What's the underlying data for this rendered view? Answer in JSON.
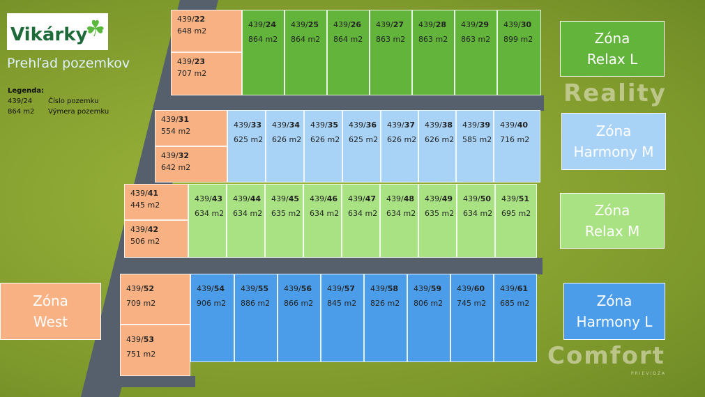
{
  "logo": {
    "text": "Vikárky"
  },
  "title": "Prehľad pozemkov",
  "legend": {
    "heading": "Legenda:",
    "rows": [
      {
        "sample": "439/24",
        "label": "Číslo pozemku"
      },
      {
        "sample": "864 m2",
        "label": "Výmera pozemku"
      }
    ]
  },
  "colors": {
    "orange": "#f8b183",
    "green": "#62b43a",
    "light_blue": "#a8d3f6",
    "light_green": "#a9e282",
    "blue": "#4c9de9",
    "road": "#55606c"
  },
  "zones": [
    {
      "name": "Zóna",
      "sub": "Relax L",
      "color": "#62b43a"
    },
    {
      "name": "Zóna",
      "sub": "Harmony M",
      "color": "#a8d3f6"
    },
    {
      "name": "Zóna",
      "sub": "Relax M",
      "color": "#a9e282"
    },
    {
      "name": "Zóna",
      "sub": "West",
      "color": "#f8b183",
      "text": "#ffffff"
    },
    {
      "name": "Zóna",
      "sub": "Harmony L",
      "color": "#4c9de9"
    }
  ],
  "plots": [
    {
      "prefix": "439/",
      "num": "22",
      "area": "648 m2",
      "zone": "orange"
    },
    {
      "prefix": "439/",
      "num": "23",
      "area": "707 m2",
      "zone": "orange"
    },
    {
      "prefix": "439/",
      "num": "24",
      "area": "864 m2",
      "zone": "green"
    },
    {
      "prefix": "439/",
      "num": "25",
      "area": "864 m2",
      "zone": "green"
    },
    {
      "prefix": "439/",
      "num": "26",
      "area": "864 m2",
      "zone": "green"
    },
    {
      "prefix": "439/",
      "num": "27",
      "area": "863 m2",
      "zone": "green"
    },
    {
      "prefix": "439/",
      "num": "28",
      "area": "863 m2",
      "zone": "green"
    },
    {
      "prefix": "439/",
      "num": "29",
      "area": "863 m2",
      "zone": "green"
    },
    {
      "prefix": "439/",
      "num": "30",
      "area": "899 m2",
      "zone": "green"
    },
    {
      "prefix": "439/",
      "num": "31",
      "area": "554 m2",
      "zone": "orange"
    },
    {
      "prefix": "439/",
      "num": "32",
      "area": "642 m2",
      "zone": "orange"
    },
    {
      "prefix": "439/",
      "num": "33",
      "area": "625 m2",
      "zone": "light_blue"
    },
    {
      "prefix": "439/",
      "num": "34",
      "area": "626 m2",
      "zone": "light_blue"
    },
    {
      "prefix": "439/",
      "num": "35",
      "area": "626 m2",
      "zone": "light_blue"
    },
    {
      "prefix": "439/",
      "num": "36",
      "area": "625 m2",
      "zone": "light_blue"
    },
    {
      "prefix": "439/",
      "num": "37",
      "area": "626 m2",
      "zone": "light_blue"
    },
    {
      "prefix": "439/",
      "num": "38",
      "area": "626 m2",
      "zone": "light_blue"
    },
    {
      "prefix": "439/",
      "num": "39",
      "area": "585 m2",
      "zone": "light_blue"
    },
    {
      "prefix": "439/",
      "num": "40",
      "area": "716 m2",
      "zone": "light_blue"
    },
    {
      "prefix": "439/",
      "num": "41",
      "area": "445 m2",
      "zone": "orange"
    },
    {
      "prefix": "439/",
      "num": "42",
      "area": "506 m2",
      "zone": "orange"
    },
    {
      "prefix": "439/",
      "num": "43",
      "area": "634 m2",
      "zone": "light_green"
    },
    {
      "prefix": "439/",
      "num": "44",
      "area": "634 m2",
      "zone": "light_green"
    },
    {
      "prefix": "439/",
      "num": "45",
      "area": "635 m2",
      "zone": "light_green"
    },
    {
      "prefix": "439/",
      "num": "46",
      "area": "634 m2",
      "zone": "light_green"
    },
    {
      "prefix": "439/",
      "num": "47",
      "area": "634 m2",
      "zone": "light_green"
    },
    {
      "prefix": "439/",
      "num": "48",
      "area": "634 m2",
      "zone": "light_green"
    },
    {
      "prefix": "439/",
      "num": "49",
      "area": "635 m2",
      "zone": "light_green"
    },
    {
      "prefix": "439/",
      "num": "50",
      "area": "634 m2",
      "zone": "light_green"
    },
    {
      "prefix": "439/",
      "num": "51",
      "area": "695 m2",
      "zone": "light_green"
    },
    {
      "prefix": "439/",
      "num": "52",
      "area": "709 m2",
      "zone": "orange"
    },
    {
      "prefix": "439/",
      "num": "53",
      "area": "751 m2",
      "zone": "orange"
    },
    {
      "prefix": "439/",
      "num": "54",
      "area": "906 m2",
      "zone": "blue"
    },
    {
      "prefix": "439/",
      "num": "55",
      "area": "886 m2",
      "zone": "blue"
    },
    {
      "prefix": "439/",
      "num": "56",
      "area": "866 m2",
      "zone": "blue"
    },
    {
      "prefix": "439/",
      "num": "57",
      "area": "845 m2",
      "zone": "blue"
    },
    {
      "prefix": "439/",
      "num": "58",
      "area": "826 m2",
      "zone": "blue"
    },
    {
      "prefix": "439/",
      "num": "59",
      "area": "806 m2",
      "zone": "blue"
    },
    {
      "prefix": "439/",
      "num": "60",
      "area": "745 m2",
      "zone": "blue"
    },
    {
      "prefix": "439/",
      "num": "61",
      "area": "685 m2",
      "zone": "blue"
    }
  ],
  "watermark": {
    "line1": "Reality",
    "line2": "Comfort",
    "line3": "PRIEVIDZA"
  }
}
